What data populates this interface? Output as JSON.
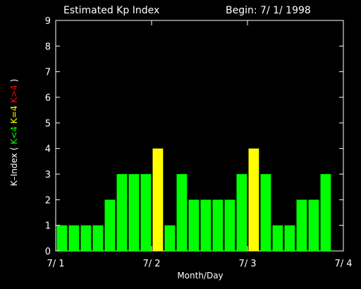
{
  "chart_data": {
    "type": "bar",
    "title": "Estimated Kp Index",
    "begin_label": "Begin: 7/ 1/ 1998",
    "xlabel": "Month/Day",
    "ylabel_parts": [
      {
        "text": "K–Index (",
        "color": "#ffffff"
      },
      {
        "text": "K<4",
        "color": "#00ff00"
      },
      {
        "text": "K=4",
        "color": "#ffff00"
      },
      {
        "text": "K>4",
        "color": "#ff0000"
      },
      {
        "text": ")",
        "color": "#ffffff"
      }
    ],
    "ylim": [
      0,
      9
    ],
    "yticks": [
      "0",
      "1",
      "2",
      "3",
      "4",
      "5",
      "6",
      "7",
      "8",
      "9"
    ],
    "xticks": [
      "7/ 1",
      "7/ 2",
      "7/ 3",
      "7/ 4"
    ],
    "bars_per_day": 8,
    "values": [
      1,
      1,
      1,
      1,
      2,
      3,
      3,
      3,
      4,
      1,
      3,
      2,
      2,
      2,
      2,
      3,
      4,
      3,
      1,
      1,
      2,
      2,
      3
    ],
    "colors": {
      "below_4": "#00ff00",
      "equal_4": "#ffff00",
      "above_4": "#ff0000"
    },
    "grid": false,
    "legend": "none"
  }
}
